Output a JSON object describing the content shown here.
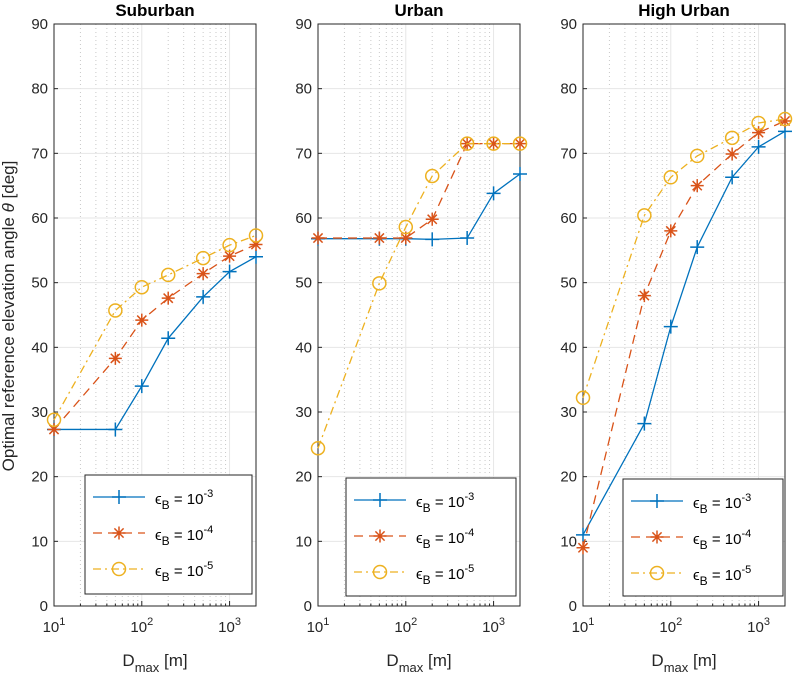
{
  "figure": {
    "ylabel_prefix": "Optimal reference elevation angle ",
    "ylabel_symbol": "θ",
    "ylabel_suffix": " [deg]",
    "xlabel_main": "D",
    "xlabel_sub": "max",
    "xlabel_suffix": " [m]"
  },
  "legend_labels": {
    "eps": "ϵ",
    "sub": "B",
    "eq": " = 10",
    "exps": [
      "-3",
      "-4",
      "-5"
    ]
  },
  "chart_data": [
    {
      "type": "line",
      "title": "Suburban",
      "xscale": "log",
      "xlim": [
        10,
        2000
      ],
      "ylim": [
        0,
        90
      ],
      "xlabel": "D_max [m]",
      "ylabel": "Optimal reference elevation angle θ [deg]",
      "grid": true,
      "legend_position": "bottom",
      "x": [
        10,
        50,
        100,
        200,
        500,
        1000,
        2000
      ],
      "series": [
        {
          "name": "ϵ_B = 10^-3",
          "values": [
            27.3,
            27.3,
            34.0,
            41.4,
            47.8,
            51.7,
            54.0
          ]
        },
        {
          "name": "ϵ_B = 10^-4",
          "values": [
            27.3,
            38.3,
            44.2,
            47.6,
            51.4,
            54.1,
            55.9
          ]
        },
        {
          "name": "ϵ_B = 10^-5",
          "values": [
            28.8,
            45.7,
            49.3,
            51.2,
            53.8,
            55.8,
            57.3
          ]
        }
      ]
    },
    {
      "type": "line",
      "title": "Urban",
      "xscale": "log",
      "xlim": [
        10,
        2000
      ],
      "ylim": [
        0,
        90
      ],
      "xlabel": "D_max [m]",
      "ylabel": "",
      "grid": true,
      "legend_position": "bottom",
      "x": [
        10,
        50,
        100,
        200,
        500,
        1000,
        2000
      ],
      "series": [
        {
          "name": "ϵ_B = 10^-3",
          "values": [
            56.8,
            56.8,
            56.8,
            56.7,
            56.9,
            63.8,
            66.8
          ]
        },
        {
          "name": "ϵ_B = 10^-4",
          "values": [
            56.9,
            56.9,
            56.9,
            59.8,
            71.5,
            71.5,
            71.5
          ]
        },
        {
          "name": "ϵ_B = 10^-5",
          "values": [
            24.4,
            49.9,
            58.6,
            66.5,
            71.5,
            71.5,
            71.5
          ]
        }
      ]
    },
    {
      "type": "line",
      "title": "High Urban",
      "xscale": "log",
      "xlim": [
        10,
        2000
      ],
      "ylim": [
        0,
        90
      ],
      "xlabel": "D_max [m]",
      "ylabel": "",
      "grid": true,
      "legend_position": "bottom",
      "x": [
        10,
        50,
        100,
        200,
        500,
        1000,
        2000
      ],
      "series": [
        {
          "name": "ϵ_B = 10^-3",
          "values": [
            11.0,
            28.2,
            43.2,
            55.5,
            66.3,
            71.0,
            73.4
          ]
        },
        {
          "name": "ϵ_B = 10^-4",
          "values": [
            9.0,
            48.0,
            58.0,
            65.0,
            69.9,
            73.2,
            75.0
          ]
        },
        {
          "name": "ϵ_B = 10^-5",
          "values": [
            32.2,
            60.4,
            66.3,
            69.6,
            72.4,
            74.7,
            75.3
          ]
        }
      ]
    }
  ],
  "styles": {
    "series_colors": [
      "#0072BD",
      "#D95319",
      "#EDB120"
    ],
    "grid_color": "#e6e6e6",
    "axis_color": "#262626"
  }
}
